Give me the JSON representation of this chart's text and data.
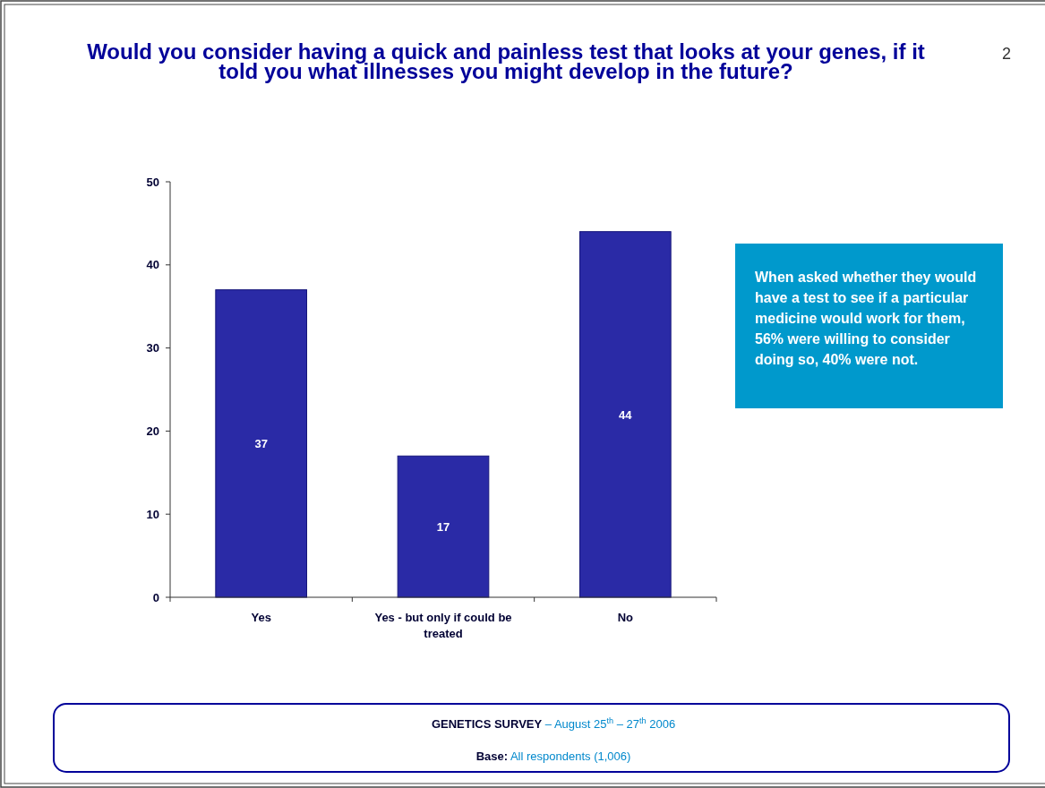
{
  "chart_data": {
    "type": "bar",
    "title": "Would you consider having a quick and painless test that looks at your genes, if it told you what illnesses you might develop in the future?",
    "categories": [
      "Yes",
      "Yes - but only if could be treated",
      "No"
    ],
    "values": [
      37,
      17,
      44
    ],
    "color": "#2a2aa6",
    "data_labels": true,
    "ylim": [
      0,
      50
    ],
    "yticks": [
      0,
      10,
      20,
      30,
      40,
      50
    ],
    "grid": false,
    "annotations": [
      "2",
      "When asked whether they would have a test to see if a particular medicine would work for them, 56% were willing to consider doing so, 40% were not.",
      "GENETICS SURVEY",
      "– August 25$^{th}$ – 27$^{th}$ 2006",
      "Base:",
      "All respondents (1,006)"
    ]
  }
}
